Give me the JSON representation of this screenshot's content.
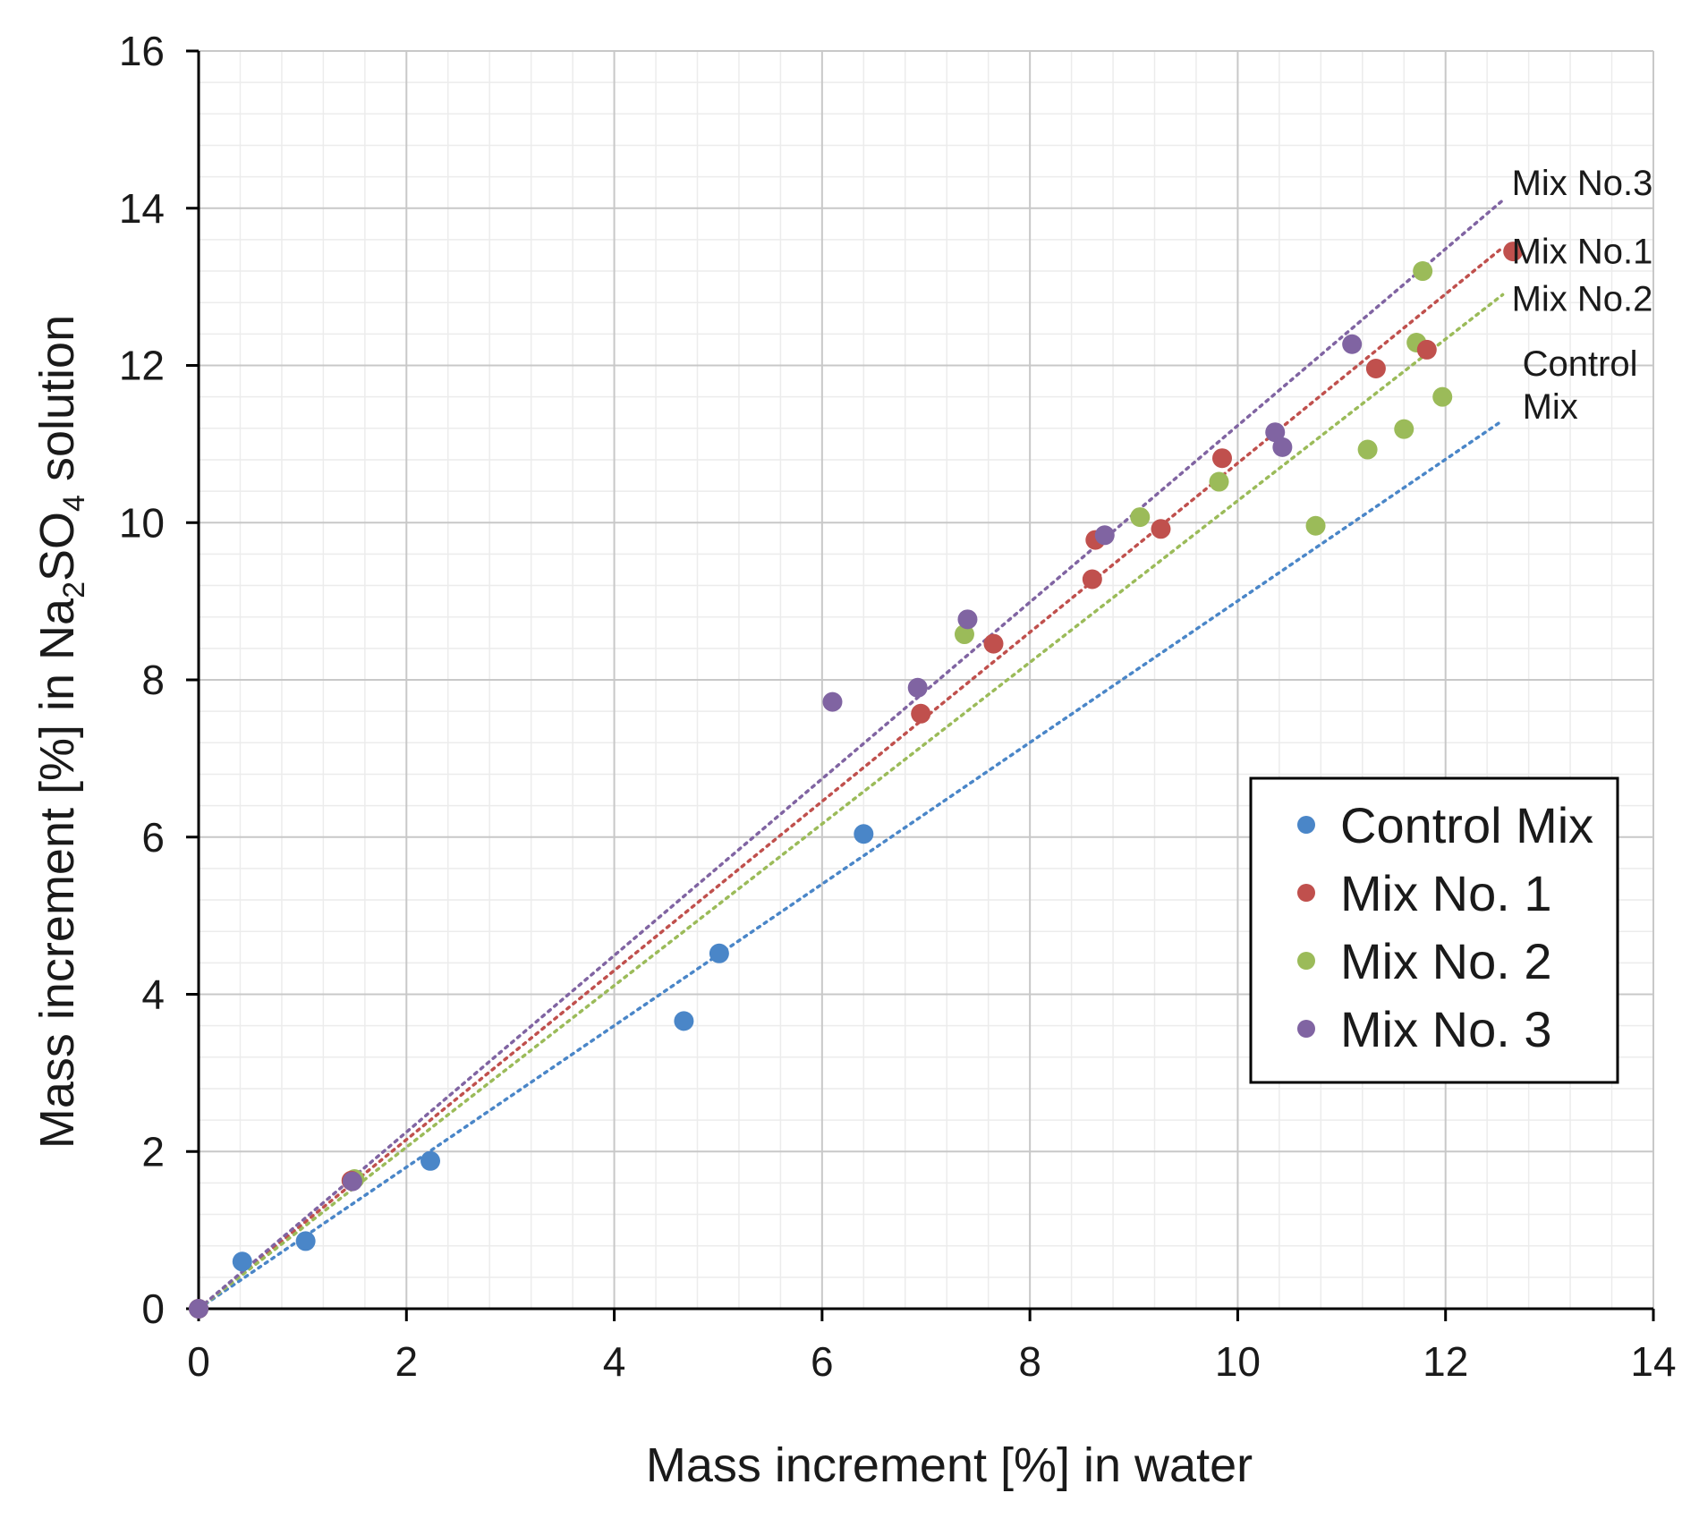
{
  "chart_data": {
    "type": "scatter",
    "title": "",
    "xlabel": "Mass increment  [%] in water",
    "ylabel_parts": {
      "prefix": "Mass increment  [%] in Na",
      "sub1": "2",
      "mid": "SO",
      "sub2": "4",
      "suffix": " solution"
    },
    "xlim": [
      0,
      14
    ],
    "ylim": [
      0,
      16
    ],
    "x_ticks": [
      "0",
      "2",
      "4",
      "6",
      "8",
      "10",
      "12",
      "14"
    ],
    "y_ticks": [
      "0",
      "2",
      "4",
      "6",
      "8",
      "10",
      "12",
      "14",
      "16"
    ],
    "grid": true,
    "legend_position": "right-middle",
    "series": [
      {
        "name": "Control Mix",
        "color": "#4a86c8",
        "points": [
          [
            0,
            0
          ],
          [
            0.42,
            0.6
          ],
          [
            1.03,
            0.86
          ],
          [
            2.23,
            1.88
          ],
          [
            4.67,
            3.66
          ],
          [
            5.01,
            4.52
          ],
          [
            6.4,
            6.04
          ]
        ],
        "trendline": {
          "x0": 0,
          "y0": 0,
          "x1": 12.55,
          "y1": 11.3,
          "label_lines": [
            "Control",
            "Mix"
          ]
        }
      },
      {
        "name": "Mix No. 1",
        "color": "#c0504d",
        "points": [
          [
            0,
            0
          ],
          [
            1.47,
            1.63
          ],
          [
            6.95,
            7.57
          ],
          [
            7.65,
            8.46
          ],
          [
            8.6,
            9.28
          ],
          [
            8.63,
            9.78
          ],
          [
            9.26,
            9.92
          ],
          [
            9.85,
            10.82
          ],
          [
            11.33,
            11.96
          ],
          [
            11.82,
            12.2
          ],
          [
            12.65,
            13.45
          ]
        ],
        "trendline": {
          "x0": 0,
          "y0": 0,
          "x1": 12.55,
          "y1": 13.5,
          "label_lines": [
            "Mix No.1"
          ]
        }
      },
      {
        "name": "Mix No. 2",
        "color": "#9bbb59",
        "points": [
          [
            0,
            0
          ],
          [
            1.5,
            1.65
          ],
          [
            7.37,
            8.58
          ],
          [
            9.06,
            10.07
          ],
          [
            9.82,
            10.52
          ],
          [
            10.75,
            9.96
          ],
          [
            11.25,
            10.93
          ],
          [
            11.6,
            11.19
          ],
          [
            11.72,
            12.29
          ],
          [
            11.78,
            13.2
          ],
          [
            11.97,
            11.6
          ]
        ],
        "trendline": {
          "x0": 0,
          "y0": 0,
          "x1": 12.55,
          "y1": 12.9,
          "label_lines": [
            "Mix No.2"
          ]
        }
      },
      {
        "name": "Mix No. 3",
        "color": "#8064a2",
        "points": [
          [
            0,
            0
          ],
          [
            1.48,
            1.62
          ],
          [
            6.1,
            7.72
          ],
          [
            6.92,
            7.9
          ],
          [
            7.4,
            8.77
          ],
          [
            8.72,
            9.84
          ],
          [
            10.36,
            11.15
          ],
          [
            10.43,
            10.96
          ],
          [
            11.1,
            12.27
          ]
        ],
        "trendline": {
          "x0": 0,
          "y0": 0,
          "x1": 12.55,
          "y1": 14.1,
          "label_lines": [
            "Mix No.3"
          ]
        }
      }
    ]
  }
}
